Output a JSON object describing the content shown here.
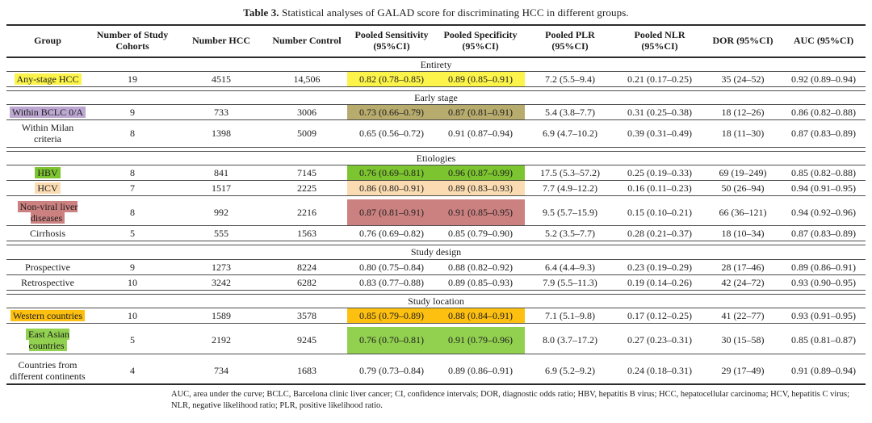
{
  "title": {
    "label": "Table 3.",
    "text": " Statistical analyses of GALAD score for discriminating HCC in different groups."
  },
  "colors": {
    "yellow": "#fcf44a",
    "lavender": "#bca8d2",
    "khaki": "#b8ab6e",
    "green": "#7dc530",
    "peach": "#fbdcb2",
    "rose": "#cc8181",
    "amber": "#fdc010",
    "green2": "#92d050"
  },
  "table": {
    "columns": [
      "Group",
      "Number of Study Cohorts",
      "Number HCC",
      "Number Control",
      "Pooled Sensitivity (95%CI)",
      "Pooled Specificity (95%CI)",
      "Pooled PLR (95%CI)",
      "Pooled NLR (95%CI)",
      "DOR (95%CI)",
      "AUC (95%CI)"
    ],
    "sections": [
      {
        "name": "Entirety",
        "gap_before": false,
        "rows": [
          {
            "group": "Any-stage HCC",
            "group_highlight": "yellow",
            "value_highlight": "yellow",
            "cells": [
              "19",
              "4515",
              "14,506",
              "0.82 (0.78–0.85)",
              "0.89 (0.85–0.91)",
              "7.2 (5.5–9.4)",
              "0.21 (0.17–0.25)",
              "35 (24–52)",
              "0.92 (0.89–0.94)"
            ]
          }
        ]
      },
      {
        "name": "Early stage",
        "gap_before": true,
        "rows": [
          {
            "group": "Within BCLC 0/A",
            "group_highlight": "lavender",
            "value_highlight": "khaki",
            "cells": [
              "9",
              "733",
              "3006",
              "0.73 (0.66–0.79)",
              "0.87 (0.81–0.91)",
              "5.4 (3.8–7.7)",
              "0.31 (0.25–0.38)",
              "18 (12–26)",
              "0.86 (0.82–0.88)"
            ]
          },
          {
            "group": "Within Milan criteria",
            "group_highlight": null,
            "value_highlight": null,
            "cells": [
              "8",
              "1398",
              "5009",
              "0.65 (0.56–0.72)",
              "0.91 (0.87–0.94)",
              "6.9 (4.7–10.2)",
              "0.39 (0.31–0.49)",
              "18 (11–30)",
              "0.87 (0.83–0.89)"
            ]
          }
        ]
      },
      {
        "name": "Etiologies",
        "gap_before": true,
        "rows": [
          {
            "group": "HBV",
            "group_highlight": "green",
            "value_highlight": "green",
            "cells": [
              "8",
              "841",
              "7145",
              "0.76 (0.69–0.81)",
              "0.96 (0.87–0.99)",
              "17.5 (5.3–57.2)",
              "0.25 (0.19–0.33)",
              "69 (19–249)",
              "0.85 (0.82–0.88)"
            ]
          },
          {
            "group": "HCV",
            "group_highlight": "peach",
            "value_highlight": "peach",
            "cells": [
              "7",
              "1517",
              "2225",
              "0.86 (0.80–0.91)",
              "0.89 (0.83–0.93)",
              "7.7 (4.9–12.2)",
              "0.16 (0.11–0.23)",
              "50 (26–94)",
              "0.94 (0.91–0.95)"
            ]
          },
          {
            "group": "Non-viral liver diseases",
            "group_highlight": "rose",
            "value_highlight": "rose",
            "gap_before": true,
            "cells": [
              "8",
              "992",
              "2216",
              "0.87 (0.81–0.91)",
              "0.91 (0.85–0.95)",
              "9.5 (5.7–15.9)",
              "0.15 (0.10–0.21)",
              "66 (36–121)",
              "0.94 (0.92–0.96)"
            ]
          },
          {
            "group": "Cirrhosis",
            "group_highlight": null,
            "value_highlight": null,
            "cells": [
              "5",
              "555",
              "1563",
              "0.76 (0.69–0.82)",
              "0.85 (0.79–0.90)",
              "5.2 (3.5–7.7)",
              "0.28 (0.21–0.37)",
              "18 (10–34)",
              "0.87 (0.83–0.89)"
            ]
          }
        ]
      },
      {
        "name": "Study design",
        "gap_before": true,
        "rows": [
          {
            "group": "Prospective",
            "group_highlight": null,
            "value_highlight": null,
            "cells": [
              "9",
              "1273",
              "8224",
              "0.80 (0.75–0.84)",
              "0.88 (0.82–0.92)",
              "6.4 (4.4–9.3)",
              "0.23 (0.19–0.29)",
              "28 (17–46)",
              "0.89 (0.86–0.91)"
            ]
          },
          {
            "group": "Retrospective",
            "group_highlight": null,
            "value_highlight": null,
            "cells": [
              "10",
              "3242",
              "6282",
              "0.83 (0.77–0.88)",
              "0.89 (0.85–0.93)",
              "7.9 (5.5–11.3)",
              "0.19 (0.14–0.26)",
              "42 (24–72)",
              "0.93 (0.90–0.95)"
            ]
          }
        ]
      },
      {
        "name": "Study location",
        "gap_before": true,
        "rows": [
          {
            "group": "Western countries",
            "group_highlight": "amber",
            "value_highlight": "amber",
            "cells": [
              "10",
              "1589",
              "3578",
              "0.85 (0.79–0.89)",
              "0.88 (0.84–0.91)",
              "7.1 (5.1–9.8)",
              "0.17 (0.12–0.25)",
              "41 (22–77)",
              "0.93 (0.91–0.95)"
            ]
          },
          {
            "group": "East Asian countries",
            "group_highlight": "green2",
            "value_highlight": "green2",
            "gap_before": true,
            "cells": [
              "5",
              "2192",
              "9245",
              "0.76 (0.70–0.81)",
              "0.91 (0.79–0.96)",
              "8.0 (3.7–17.2)",
              "0.27 (0.23–0.31)",
              "30 (15–58)",
              "0.85 (0.81–0.87)"
            ]
          },
          {
            "group": "Countries from different continents",
            "group_highlight": null,
            "value_highlight": null,
            "gap_before": true,
            "cells": [
              "4",
              "734",
              "1683",
              "0.79 (0.73–0.84)",
              "0.89 (0.86–0.91)",
              "6.9 (5.2–9.2)",
              "0.24 (0.18–0.31)",
              "29 (17–49)",
              "0.91 (0.89–0.94)"
            ]
          }
        ]
      }
    ]
  },
  "footnote": "AUC, area under the curve; BCLC, Barcelona clinic liver cancer; CI, confidence intervals; DOR, diagnostic odds ratio; HBV, hepatitis B virus; HCC, hepatocellular carcinoma; HCV, hepatitis C virus; NLR, negative likelihood ratio; PLR, positive likelihood ratio."
}
